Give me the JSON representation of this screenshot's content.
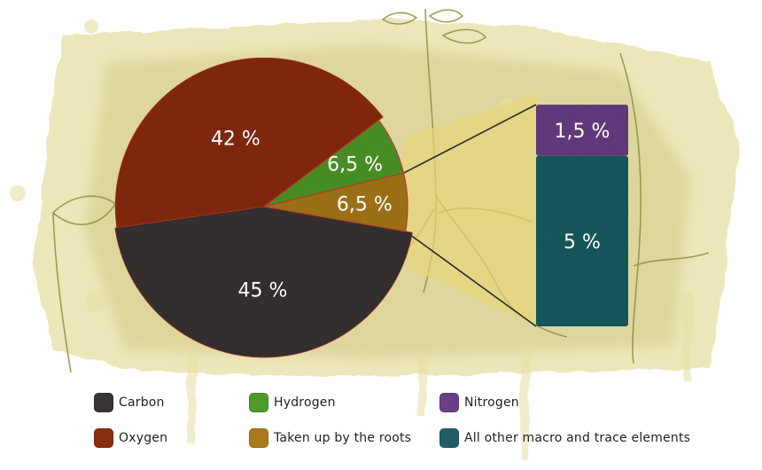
{
  "chart_data": {
    "type": "pie",
    "title": "",
    "slices": [
      {
        "name": "Carbon",
        "value": 45,
        "label": "45 %",
        "color": "#3a3434"
      },
      {
        "name": "Oxygen",
        "value": 42,
        "label": "42 %",
        "color": "#8a2e12"
      },
      {
        "name": "Hydrogen",
        "value": 6.5,
        "label": "6,5 %",
        "color": "#4f9a2a"
      },
      {
        "name": "Taken up by the roots",
        "value": 6.5,
        "label": "6,5 %",
        "color": "#a87a1c"
      }
    ],
    "breakdown": {
      "of": "Taken up by the roots",
      "segments": [
        {
          "name": "Nitrogen",
          "value": 1.5,
          "label": "1,5 %",
          "color": "#6b3f86"
        },
        {
          "name": "All other macro and trace elements",
          "value": 5,
          "label": "5 %",
          "color": "#1f5f63"
        }
      ]
    }
  },
  "legend": {
    "items": [
      {
        "label": "Carbon",
        "color": "#3a3434"
      },
      {
        "label": "Hydrogen",
        "color": "#4f9a2a"
      },
      {
        "label": "Nitrogen",
        "color": "#6b3f86"
      },
      {
        "label": "Oxygen",
        "color": "#8a2e12"
      },
      {
        "label": "Taken up by the roots",
        "color": "#a87a1c"
      },
      {
        "label": "All other macro and trace elements",
        "color": "#1f5f63"
      }
    ]
  },
  "colors": {
    "paper_wash": "#e6dfa4",
    "paper_wash_dark": "#cfc27a",
    "connector_band": "#e7d77a",
    "ink_lines": "#2a2a2a",
    "plant_stroke": "#8d8f3f"
  }
}
